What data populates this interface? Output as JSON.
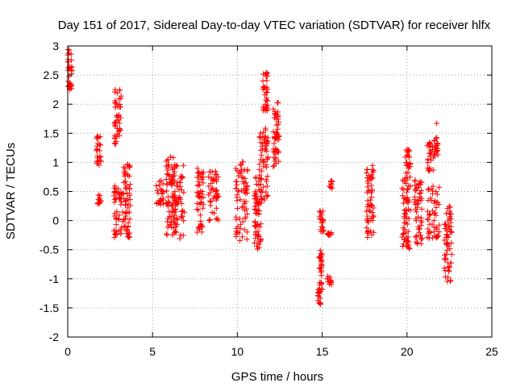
{
  "chart_data": {
    "type": "scatter",
    "title": "Day 151 of 2017, Sidereal Day-to-day VTEC variation (SDTVAR) for receiver hlfx",
    "xlabel": "GPS time / hours",
    "ylabel": "SDTVAR / TECUs",
    "xlim": [
      0,
      25
    ],
    "ylim": [
      -2,
      3
    ],
    "grid": true,
    "marker": "+",
    "marker_color": "#ff0000",
    "x_ticks": [
      0,
      5,
      10,
      15,
      20,
      25
    ],
    "x_tick_labels": [
      "0",
      "5",
      "10",
      "15",
      "20",
      "25"
    ],
    "y_ticks": [
      -2,
      -1.5,
      -1,
      -0.5,
      0,
      0.5,
      1,
      1.5,
      2,
      2.5,
      3
    ],
    "y_tick_labels": [
      "-2",
      "-1.5",
      "-1",
      "-0.5",
      "0",
      "0.5",
      "1",
      "1.5",
      "2",
      "2.5",
      "3"
    ],
    "clusters": [
      {
        "x": [
          0.0,
          0.25
        ],
        "y": [
          2.2,
          2.95
        ]
      },
      {
        "x": [
          1.7,
          1.95
        ],
        "y": [
          0.95,
          1.45
        ]
      },
      {
        "x": [
          1.75,
          1.95
        ],
        "y": [
          0.25,
          0.45
        ]
      },
      {
        "x": [
          2.75,
          3.15
        ],
        "y": [
          1.3,
          2.25
        ]
      },
      {
        "x": [
          2.7,
          3.25
        ],
        "y": [
          -0.3,
          0.65
        ]
      },
      {
        "x": [
          3.3,
          3.7
        ],
        "y": [
          -0.3,
          1.0
        ]
      },
      {
        "x": [
          5.2,
          5.65
        ],
        "y": [
          0.25,
          0.7
        ]
      },
      {
        "x": [
          5.8,
          6.4
        ],
        "y": [
          -0.25,
          1.1
        ]
      },
      {
        "x": [
          6.1,
          6.9
        ],
        "y": [
          -0.35,
          0.95
        ]
      },
      {
        "x": [
          7.6,
          8.0
        ],
        "y": [
          -0.2,
          0.9
        ]
      },
      {
        "x": [
          8.3,
          8.9
        ],
        "y": [
          0.0,
          0.85
        ]
      },
      {
        "x": [
          9.9,
          10.6
        ],
        "y": [
          -0.35,
          1.05
        ]
      },
      {
        "x": [
          11.0,
          11.4
        ],
        "y": [
          -0.5,
          0.05
        ]
      },
      {
        "x": [
          11.0,
          11.3
        ],
        "y": [
          0.1,
          0.75
        ]
      },
      {
        "x": [
          11.3,
          11.8
        ],
        "y": [
          0.3,
          1.6
        ]
      },
      {
        "x": [
          11.5,
          11.8
        ],
        "y": [
          1.85,
          2.55
        ]
      },
      {
        "x": [
          12.1,
          12.45
        ],
        "y": [
          0.9,
          2.05
        ]
      },
      {
        "x": [
          14.75,
          15.05
        ],
        "y": [
          -1.5,
          -1.05
        ]
      },
      {
        "x": [
          14.8,
          15.0
        ],
        "y": [
          -0.95,
          -0.5
        ]
      },
      {
        "x": [
          14.85,
          15.1
        ],
        "y": [
          -0.2,
          0.2
        ]
      },
      {
        "x": [
          15.3,
          15.55
        ],
        "y": [
          -1.1,
          -0.95
        ]
      },
      {
        "x": [
          15.3,
          15.55
        ],
        "y": [
          -0.25,
          -0.2
        ]
      },
      {
        "x": [
          15.4,
          15.6
        ],
        "y": [
          0.55,
          0.7
        ]
      },
      {
        "x": [
          17.6,
          18.05
        ],
        "y": [
          -0.3,
          0.95
        ]
      },
      {
        "x": [
          19.7,
          20.2
        ],
        "y": [
          -0.5,
          0.8
        ]
      },
      {
        "x": [
          19.9,
          20.2
        ],
        "y": [
          0.8,
          1.25
        ]
      },
      {
        "x": [
          20.4,
          20.9
        ],
        "y": [
          -0.4,
          0.7
        ]
      },
      {
        "x": [
          21.2,
          21.55
        ],
        "y": [
          0.85,
          1.35
        ]
      },
      {
        "x": [
          21.2,
          21.9
        ],
        "y": [
          -0.3,
          0.6
        ]
      },
      {
        "x": [
          21.6,
          21.85
        ],
        "y": [
          1.1,
          1.45
        ]
      },
      {
        "x": [
          22.2,
          22.65
        ],
        "y": [
          -1.05,
          0.25
        ]
      }
    ],
    "outliers": [
      {
        "x": 21.75,
        "y": 1.67
      },
      {
        "x": 11.1,
        "y": 0.73
      },
      {
        "x": 2.8,
        "y": 2.25
      }
    ]
  }
}
